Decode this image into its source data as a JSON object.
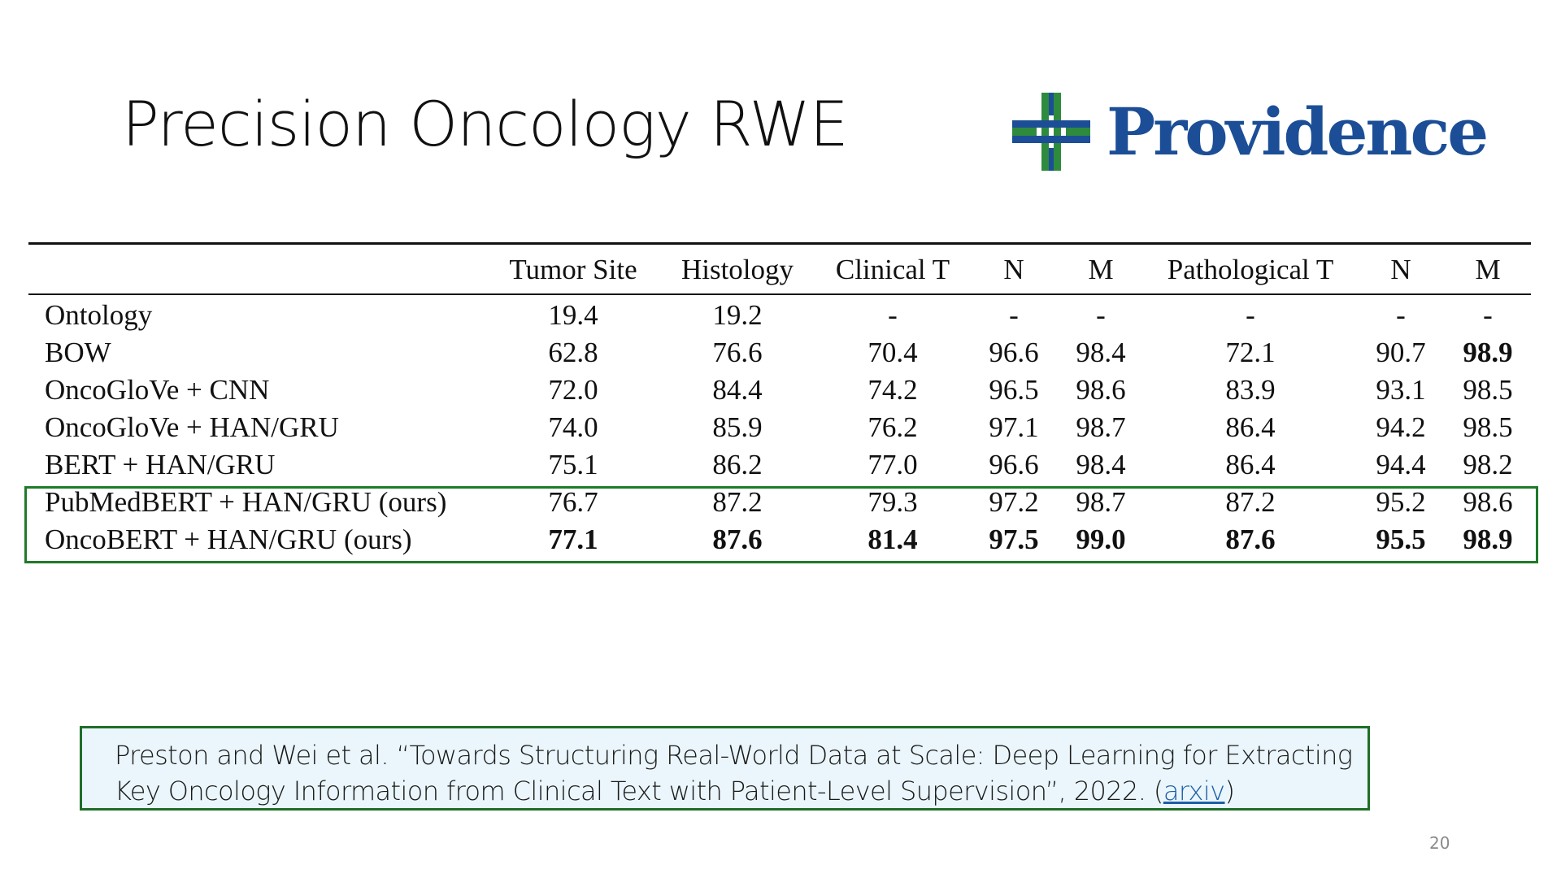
{
  "slide": {
    "title": "Precision Oncology RWE",
    "logo_text": "Providence",
    "page_number": "20",
    "colors": {
      "logo_blue": "#1b4e96",
      "logo_green": "#2e8b3e",
      "highlight_green": "#1f7a2a",
      "citation_bg": "#eaf6fb"
    }
  },
  "table": {
    "headers": [
      "",
      "Tumor Site",
      "Histology",
      "Clinical T",
      "N",
      "M",
      "Pathological T",
      "N",
      "M"
    ],
    "rows": [
      {
        "cells": [
          "Ontology",
          "19.4",
          "19.2",
          "-",
          "-",
          "-",
          "-",
          "-",
          "-"
        ],
        "bold": []
      },
      {
        "cells": [
          "BOW",
          "62.8",
          "76.6",
          "70.4",
          "96.6",
          "98.4",
          "72.1",
          "90.7",
          "98.9"
        ],
        "bold": [
          8
        ]
      },
      {
        "cells": [
          "OncoGloVe + CNN",
          "72.0",
          "84.4",
          "74.2",
          "96.5",
          "98.6",
          "83.9",
          "93.1",
          "98.5"
        ],
        "bold": []
      },
      {
        "cells": [
          "OncoGloVe + HAN/GRU",
          "74.0",
          "85.9",
          "76.2",
          "97.1",
          "98.7",
          "86.4",
          "94.2",
          "98.5"
        ],
        "bold": []
      },
      {
        "cells": [
          "BERT + HAN/GRU",
          "75.1",
          "86.2",
          "77.0",
          "96.6",
          "98.4",
          "86.4",
          "94.4",
          "98.2"
        ],
        "bold": []
      },
      {
        "cells": [
          "PubMedBERT + HAN/GRU (ours)",
          "76.7",
          "87.2",
          "79.3",
          "97.2",
          "98.7",
          "87.2",
          "95.2",
          "98.6"
        ],
        "bold": []
      },
      {
        "cells": [
          "OncoBERT + HAN/GRU (ours)",
          "77.1",
          "87.6",
          "81.4",
          "97.5",
          "99.0",
          "87.6",
          "95.5",
          "98.9"
        ],
        "bold": [
          1,
          2,
          3,
          4,
          5,
          6,
          7,
          8
        ]
      }
    ],
    "highlighted_rows": [
      5,
      6
    ]
  },
  "citation": {
    "line1": "Preston and Wei et al. “Towards Structuring Real-World Data at Scale: Deep Learning for Extracting",
    "line2_prefix": "Key Oncology Information from Clinical Text with Patient-Level Supervision”, 2022. (",
    "link_text": "arxiv",
    "line2_suffix": ")"
  }
}
